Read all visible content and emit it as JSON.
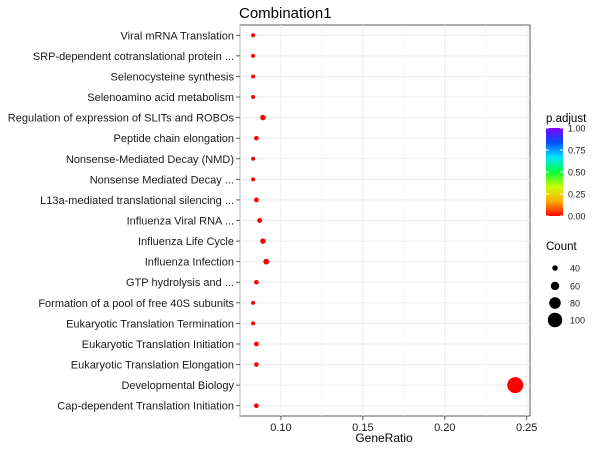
{
  "chart_data": {
    "type": "scatter",
    "title": "Combination1",
    "xlabel": "GeneRatio",
    "ylabel": "",
    "xlim": [
      0.075,
      0.252
    ],
    "x_ticks": [
      0.1,
      0.15,
      0.2,
      0.25
    ],
    "x_tick_labels": [
      "0.10",
      "0.15",
      "0.20",
      "0.25"
    ],
    "grid": true,
    "categories": [
      "Viral mRNA Translation",
      "SRP-dependent cotranslational protein ...",
      "Selenocysteine synthesis",
      "Selenoamino acid metabolism",
      "Regulation of expression of SLITs and ROBOs",
      "Peptide chain elongation",
      "Nonsense-Mediated Decay (NMD)",
      "Nonsense Mediated Decay ...",
      "L13a-mediated translational silencing ...",
      "Influenza Viral RNA ...",
      "Influenza Life Cycle",
      "Influenza Infection",
      "GTP hydrolysis and ...",
      "Formation of a pool of free 40S subunits",
      "Eukaryotic Translation Termination",
      "Eukaryotic Translation Initiation",
      "Eukaryotic Translation Elongation",
      "Developmental Biology",
      "Cap-dependent Translation Initiation"
    ],
    "points": [
      {
        "label": "Viral mRNA Translation",
        "x": 0.083,
        "count": 30,
        "p_adjust": 0.0
      },
      {
        "label": "SRP-dependent cotranslational protein ...",
        "x": 0.083,
        "count": 30,
        "p_adjust": 0.0
      },
      {
        "label": "Selenocysteine synthesis",
        "x": 0.083,
        "count": 30,
        "p_adjust": 0.0
      },
      {
        "label": "Selenoamino acid metabolism",
        "x": 0.083,
        "count": 30,
        "p_adjust": 0.0
      },
      {
        "label": "Regulation of expression of SLITs and ROBOs",
        "x": 0.089,
        "count": 40,
        "p_adjust": 0.0
      },
      {
        "label": "Peptide chain elongation",
        "x": 0.085,
        "count": 34,
        "p_adjust": 0.0
      },
      {
        "label": "Nonsense-Mediated Decay (NMD)",
        "x": 0.083,
        "count": 30,
        "p_adjust": 0.0
      },
      {
        "label": "Nonsense Mediated Decay ...",
        "x": 0.083,
        "count": 30,
        "p_adjust": 0.0
      },
      {
        "label": "L13a-mediated translational silencing ...",
        "x": 0.085,
        "count": 35,
        "p_adjust": 0.0
      },
      {
        "label": "Influenza Viral RNA ...",
        "x": 0.087,
        "count": 37,
        "p_adjust": 0.0
      },
      {
        "label": "Influenza Life Cycle",
        "x": 0.089,
        "count": 40,
        "p_adjust": 0.0
      },
      {
        "label": "Influenza Infection",
        "x": 0.091,
        "count": 42,
        "p_adjust": 0.0
      },
      {
        "label": "GTP hydrolysis and ...",
        "x": 0.085,
        "count": 34,
        "p_adjust": 0.0
      },
      {
        "label": "Formation of a pool of free 40S subunits",
        "x": 0.083,
        "count": 30,
        "p_adjust": 0.0
      },
      {
        "label": "Eukaryotic Translation Termination",
        "x": 0.083,
        "count": 30,
        "p_adjust": 0.0
      },
      {
        "label": "Eukaryotic Translation Initiation",
        "x": 0.085,
        "count": 35,
        "p_adjust": 0.0
      },
      {
        "label": "Eukaryotic Translation Elongation",
        "x": 0.085,
        "count": 34,
        "p_adjust": 0.0
      },
      {
        "label": "Developmental Biology",
        "x": 0.243,
        "count": 110,
        "p_adjust": 0.0
      },
      {
        "label": "Cap-dependent Translation Initiation",
        "x": 0.085,
        "count": 35,
        "p_adjust": 0.0
      }
    ],
    "point_color": "#ff0000",
    "legend_color": {
      "title": "p.adjust",
      "ticks": [
        1.0,
        0.75,
        0.5,
        0.25,
        0.0
      ],
      "tick_labels": [
        "1.00",
        "0.75",
        "0.50",
        "0.25",
        "0.00"
      ],
      "gradient": [
        "#ff0000",
        "#ffb000",
        "#c8ff00",
        "#00ff3c",
        "#00e5ff",
        "#0050ff",
        "#8000ff"
      ],
      "placement": "right"
    },
    "legend_size": {
      "title": "Count",
      "values": [
        40,
        60,
        80,
        100
      ],
      "labels": [
        "40",
        "60",
        "80",
        "100"
      ],
      "placement": "right"
    }
  }
}
